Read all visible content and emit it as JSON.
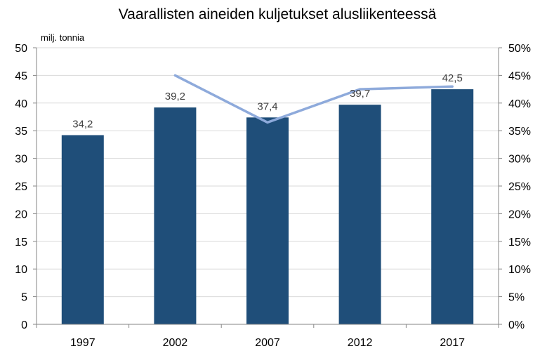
{
  "chart_data": {
    "type": "bar",
    "title": "Vaarallisten aineiden kuljetukset alusliikenteessä",
    "categories": [
      "1997",
      "2002",
      "2007",
      "2012",
      "2017"
    ],
    "ylabel": "milj. tonnia",
    "ylim": [
      0,
      50
    ],
    "yticks": [
      "0",
      "5",
      "10",
      "15",
      "20",
      "25",
      "30",
      "35",
      "40",
      "45",
      "50"
    ],
    "y2lim": [
      0,
      0.5
    ],
    "y2ticks": [
      "0%",
      "5%",
      "10%",
      "15%",
      "20%",
      "25%",
      "30%",
      "35%",
      "40%",
      "45%",
      "50%"
    ],
    "grid": true,
    "series": [
      {
        "type": "bar",
        "axis": "left",
        "values": [
          34.2,
          39.2,
          37.4,
          39.7,
          42.5
        ],
        "data_labels": [
          "34,2",
          "39,2",
          "37,4",
          "39,7",
          "42,5"
        ],
        "color": "#1f4e79"
      },
      {
        "type": "line",
        "axis": "right",
        "values": [
          null,
          0.45,
          0.365,
          0.425,
          0.43
        ],
        "color": "#8eaadb"
      }
    ]
  }
}
